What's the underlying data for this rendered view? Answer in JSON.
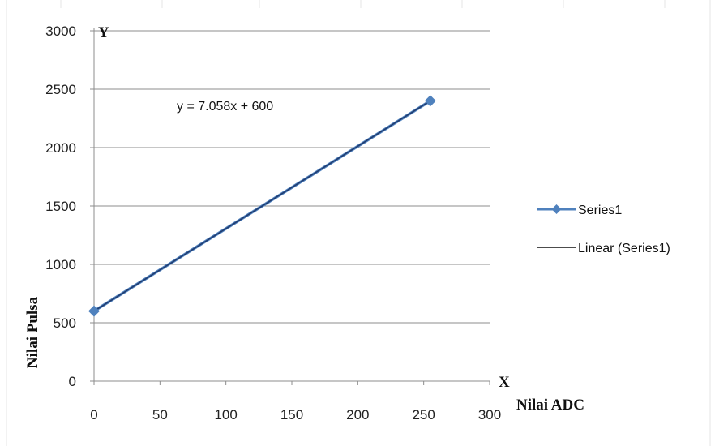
{
  "chart_data": {
    "type": "scatter",
    "x_axis": {
      "label": "Nilai ADC",
      "end_label": "X",
      "range": [
        0,
        300
      ],
      "ticks": [
        0,
        50,
        100,
        150,
        200,
        250,
        300
      ]
    },
    "y_axis": {
      "label": "Nilai Pulsa",
      "end_label": "Y",
      "range": [
        0,
        3000
      ],
      "ticks": [
        0,
        500,
        1000,
        1500,
        2000,
        2500,
        3000
      ]
    },
    "series": [
      {
        "name": "Series1",
        "color": "#4f81bd",
        "marker": "diamond",
        "points": [
          {
            "x": 0,
            "y": 600
          },
          {
            "x": 255,
            "y": 2400
          }
        ]
      }
    ],
    "trendline": {
      "name": "Linear (Series1)",
      "color": "#1f3a6e",
      "slope": 7.058,
      "intercept": 600,
      "equation": "y = 7.058x + 600"
    },
    "grid": {
      "horizontal": true,
      "vertical": false
    },
    "legend_position": "right"
  }
}
